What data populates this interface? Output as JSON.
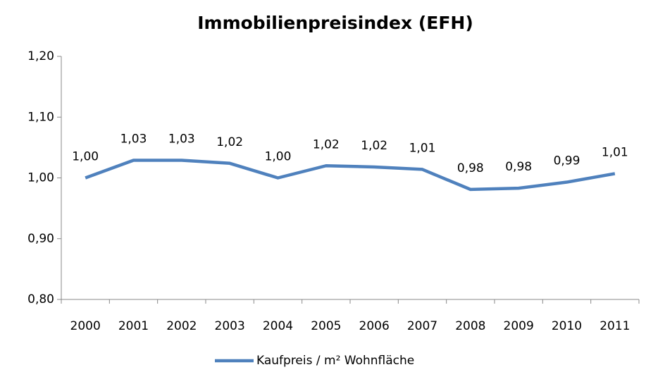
{
  "chart_data": {
    "type": "line",
    "title": "Immobilienpreisindex (EFH)",
    "categories": [
      "2000",
      "2001",
      "2002",
      "2003",
      "2004",
      "2005",
      "2006",
      "2007",
      "2008",
      "2009",
      "2010",
      "2011"
    ],
    "series": [
      {
        "name": "Kaufpreis / m² Wohnfläche",
        "color": "#4f81bd",
        "values": [
          1.0,
          1.029,
          1.029,
          1.024,
          1.0,
          1.02,
          1.018,
          1.014,
          0.981,
          0.983,
          0.993,
          1.007
        ],
        "value_labels": [
          "1,00",
          "1,03",
          "1,03",
          "1,02",
          "1,00",
          "1,02",
          "1,02",
          "1,01",
          "0,98",
          "0,98",
          "0,99",
          "1,01"
        ]
      }
    ],
    "ylim": [
      0.8,
      1.2
    ],
    "yticks": [
      {
        "value": 0.8,
        "label": "0,80"
      },
      {
        "value": 0.9,
        "label": "0,90"
      },
      {
        "value": 1.0,
        "label": "1,00"
      },
      {
        "value": 1.1,
        "label": "1,10"
      },
      {
        "value": 1.2,
        "label": "1,20"
      }
    ],
    "grid": false,
    "legend": "bottom"
  }
}
